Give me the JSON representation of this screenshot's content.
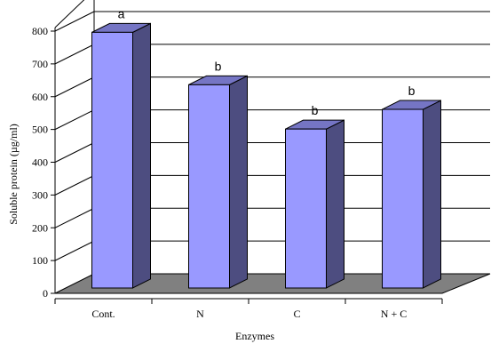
{
  "chart_data": {
    "type": "bar",
    "style": "3d-column",
    "categories": [
      "Cont.",
      "N",
      "C",
      "N + C"
    ],
    "values": [
      780,
      620,
      485,
      545
    ],
    "data_labels": [
      "a",
      "b",
      "b",
      "b"
    ],
    "title": "",
    "xlabel": "Enzymes",
    "ylabel": "Soluble protein (µg/ml)",
    "ylim": [
      0,
      800
    ],
    "yticks": [
      0,
      100,
      200,
      300,
      400,
      500,
      600,
      700,
      800
    ],
    "grid": true,
    "legend": "none",
    "colors": {
      "bar_front": "#9999ff",
      "bar_side": "#4d4d80",
      "bar_top": "#7575c4",
      "floor": "#808080",
      "grid": "#000000"
    }
  }
}
